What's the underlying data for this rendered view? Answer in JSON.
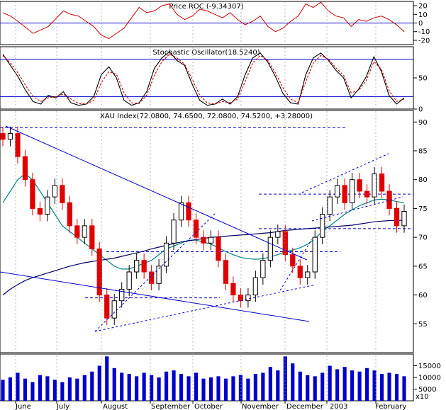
{
  "colors": {
    "price_up": "#000000",
    "price_down": "#e00000",
    "roc_line": "#cc0000",
    "stoch_k": "#000000",
    "stoch_d": "#cc0000",
    "ma_long": "#000066",
    "ma_short": "#008080",
    "trendline": "#0000cc",
    "grid": "#999999",
    "volume": "#0000cc"
  },
  "chart_data": [
    {
      "type": "line",
      "title": "Price ROC (-9.34307)",
      "ylim": [
        -25,
        25
      ],
      "y_ticks": [
        "20",
        "10",
        "0",
        "-10",
        "-20"
      ],
      "y_tick_values": [
        20,
        10,
        0,
        -10,
        -20
      ],
      "reference_lines": [
        0,
        0
      ],
      "series": [
        {
          "values": [
            12,
            8,
            2,
            -5,
            -12,
            -8,
            -4,
            5,
            14,
            10,
            8,
            2,
            -4,
            -14,
            -18,
            -12,
            -6,
            6,
            18,
            12,
            14,
            20,
            22,
            10,
            4,
            8,
            16,
            14,
            10,
            6,
            12,
            4,
            -2,
            2,
            8,
            -4,
            -10,
            -6,
            2,
            8,
            22,
            18,
            24,
            14,
            8,
            6,
            -4,
            4,
            2,
            6,
            8,
            4,
            -2,
            -10
          ]
        }
      ]
    },
    {
      "type": "line",
      "title": "Stochastic Oscillator(18.5240)",
      "ylim": [
        0,
        100
      ],
      "y_ticks": [
        "50",
        "0"
      ],
      "y_tick_values": [
        50,
        0
      ],
      "reference_lines": [
        80,
        20
      ],
      "series": [
        {
          "values": [
            88,
            70,
            52,
            30,
            12,
            8,
            22,
            18,
            28,
            10,
            6,
            8,
            20,
            55,
            68,
            50,
            14,
            6,
            10,
            28,
            65,
            82,
            92,
            78,
            70,
            40,
            14,
            6,
            8,
            16,
            8,
            20,
            55,
            82,
            90,
            75,
            52,
            25,
            10,
            8,
            55,
            82,
            90,
            78,
            62,
            50,
            18,
            32,
            52,
            84,
            60,
            22,
            8,
            18
          ]
        },
        {
          "values": [
            86,
            74,
            58,
            38,
            20,
            12,
            18,
            20,
            24,
            16,
            9,
            8,
            14,
            42,
            60,
            56,
            26,
            10,
            9,
            22,
            54,
            76,
            88,
            82,
            72,
            48,
            22,
            10,
            8,
            12,
            10,
            16,
            44,
            74,
            86,
            78,
            58,
            34,
            16,
            10,
            44,
            74,
            86,
            80,
            66,
            54,
            26,
            30,
            46,
            76,
            64,
            30,
            12,
            16
          ]
        }
      ]
    },
    {
      "type": "candlestick",
      "title": "XAU Index(72.0800, 74.6500, 72.0800, 74.5200, +3.28000)",
      "ylim": [
        50,
        92
      ],
      "y_ticks": [
        "90",
        "85",
        "80",
        "75",
        "70",
        "65",
        "60",
        "55"
      ],
      "y_tick_values": [
        90,
        85,
        80,
        75,
        70,
        65,
        60,
        55
      ],
      "x_labels": [
        "June",
        "July",
        "August",
        "September",
        "October",
        "November",
        "December",
        "2003",
        "February"
      ],
      "close": [
        87,
        88,
        84,
        80,
        75,
        74,
        77,
        79,
        76,
        72,
        70,
        72,
        68,
        60,
        56,
        59,
        61,
        64,
        66,
        64,
        62,
        65,
        69,
        73,
        76,
        73,
        70,
        69,
        70,
        66,
        62,
        60,
        59,
        60,
        63,
        66,
        70,
        71,
        67,
        65,
        63,
        64,
        70,
        74,
        77,
        79,
        76,
        80,
        78,
        77,
        81,
        78,
        75,
        72,
        74.5
      ],
      "moving_averages": [
        {
          "values": [
            76,
            78,
            80,
            81,
            80,
            78,
            76,
            74,
            72,
            71,
            70,
            69,
            68,
            67,
            66,
            65,
            64.5,
            64.5,
            65,
            65.5,
            66,
            67,
            68,
            68.5,
            69,
            69.5,
            69.5,
            69.2,
            68.8,
            68.2,
            67.5,
            67,
            66.5,
            66.3,
            66.2,
            66.3,
            66.6,
            67,
            67.5,
            67.8,
            68.2,
            68.8,
            69.8,
            71,
            72,
            73,
            74,
            74.8,
            75.5,
            76,
            76.5,
            76.6,
            76.5,
            76.2,
            76
          ]
        },
        {
          "values": [
            60,
            61,
            61.8,
            62.5,
            63,
            63.4,
            63.8,
            64.2,
            64.6,
            65,
            65.3,
            65.6,
            65.8,
            66,
            66.2,
            66.4,
            66.7,
            67,
            67.3,
            67.6,
            68,
            68.3,
            68.6,
            68.9,
            69.2,
            69.4,
            69.6,
            69.8,
            70,
            70.1,
            70.2,
            70.3,
            70.4,
            70.5,
            70.6,
            70.7,
            70.8,
            71,
            71.2,
            71.3,
            71.4,
            71.5,
            71.6,
            71.7,
            71.8,
            71.9,
            72,
            72.1,
            72.3,
            72.5,
            72.7,
            72.8,
            72.9,
            72.9,
            73
          ]
        }
      ],
      "support_resistance_levels": [
        89,
        77.5,
        71.5,
        67.5,
        59.5
      ]
    },
    {
      "type": "bar",
      "title": "",
      "ylim": [
        0,
        20000
      ],
      "y_ticks": [
        "15000",
        "10000",
        "5000"
      ],
      "y_tick_values": [
        15000,
        10000,
        5000
      ],
      "unit_label": "x10",
      "values": [
        9000,
        10000,
        12000,
        9500,
        8000,
        11000,
        10500,
        9000,
        8000,
        10000,
        9500,
        11000,
        12500,
        15000,
        19000,
        14000,
        12000,
        11500,
        10500,
        12000,
        11000,
        10000,
        12500,
        13000,
        11500,
        10500,
        12000,
        9500,
        10000,
        10500,
        9500,
        10500,
        11000,
        9500,
        11500,
        12000,
        14500,
        13000,
        19000,
        16000,
        12500,
        11000,
        10500,
        12000,
        15000,
        13500,
        14500,
        13000,
        12500,
        14000,
        13000,
        11500,
        12000,
        11500,
        10500
      ]
    }
  ]
}
